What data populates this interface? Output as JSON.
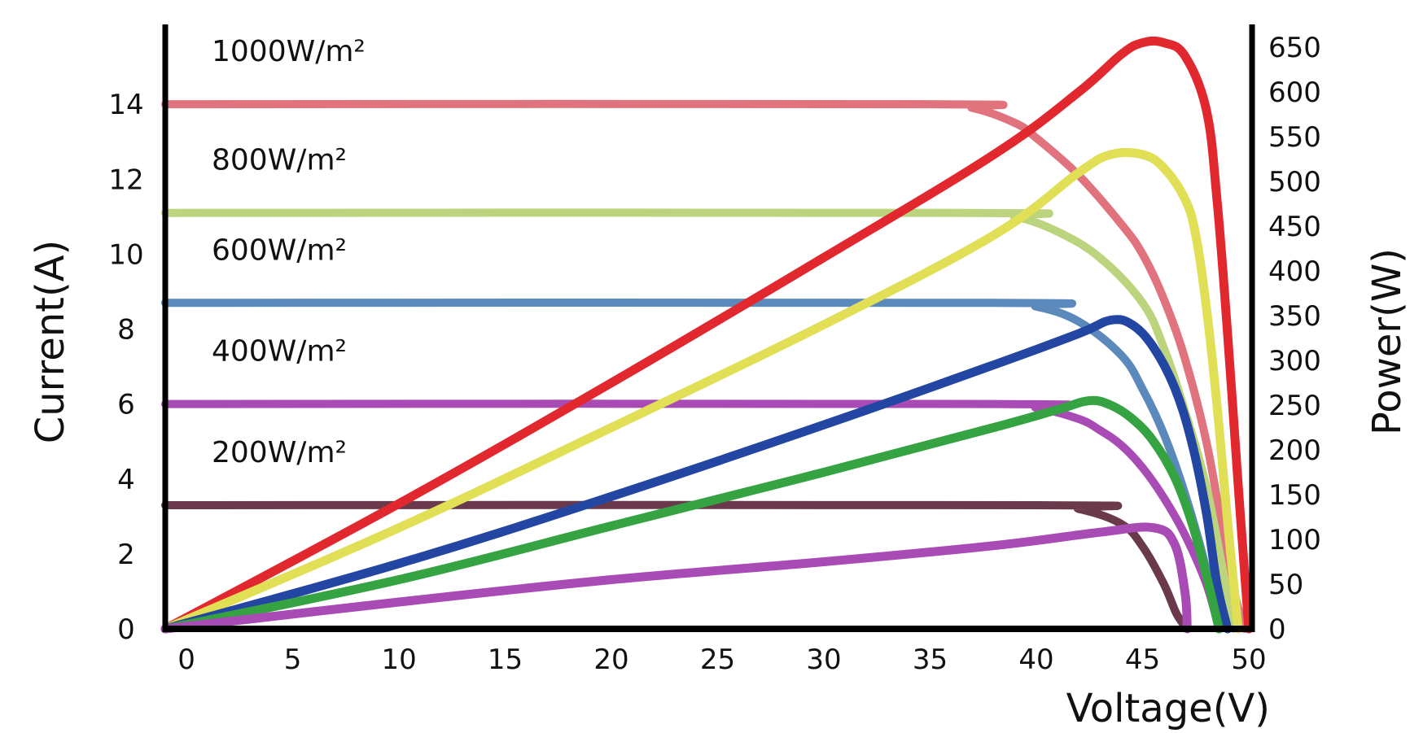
{
  "chart_data": {
    "type": "line",
    "title": "",
    "xlabel": "Voltage(V)",
    "ylabel_left": "Current(A)",
    "ylabel_right": "Power(W)",
    "xlim": [
      -1,
      50
    ],
    "ylim_left": [
      0,
      16
    ],
    "ylim_right": [
      0,
      670
    ],
    "x_ticks": [
      "0",
      "5",
      "10",
      "15",
      "20",
      "25",
      "30",
      "35",
      "40",
      "45",
      "50"
    ],
    "y_left_ticks": [
      "0",
      "2",
      "4",
      "6",
      "8",
      "10",
      "12",
      "14"
    ],
    "y_right_ticks": [
      "0",
      "50",
      "100",
      "150",
      "200",
      "250",
      "300",
      "350",
      "400",
      "450",
      "500",
      "550",
      "600",
      "650"
    ],
    "grid": false,
    "legend": "none",
    "series": [
      {
        "name": "1000W/m²",
        "kind": "current",
        "axis": "left",
        "color": "#e0737d",
        "x": [
          -1,
          35,
          37,
          39,
          40,
          42,
          44,
          45,
          46,
          47,
          48,
          48.8,
          49.3,
          49.8
        ],
        "y": [
          14,
          14,
          13.9,
          13.5,
          13.1,
          12.1,
          10.8,
          10,
          8.8,
          7.2,
          5,
          2.5,
          1,
          0
        ]
      },
      {
        "name": "800W/m²",
        "kind": "current",
        "axis": "left",
        "color": "#bcd47e",
        "x": [
          -1,
          37,
          39,
          41,
          43,
          45,
          46,
          47,
          48,
          48.8,
          49.3
        ],
        "y": [
          11.1,
          11.1,
          11,
          10.6,
          9.9,
          8.7,
          7.5,
          5.8,
          3.8,
          1.5,
          0
        ]
      },
      {
        "name": "600W/m²",
        "kind": "current",
        "axis": "left",
        "color": "#5c89bc",
        "x": [
          -1,
          38,
          40,
          42,
          44,
          45,
          46,
          47,
          48,
          48.6
        ],
        "y": [
          8.7,
          8.7,
          8.6,
          8.2,
          7.3,
          6.4,
          5.2,
          3.6,
          1.6,
          0
        ]
      },
      {
        "name": "400W/m²",
        "kind": "current",
        "axis": "left",
        "color": "#a84bb5",
        "x": [
          -1,
          38,
          40,
          42,
          43,
          44,
          45,
          46,
          47,
          48,
          48.6
        ],
        "y": [
          6,
          6,
          5.9,
          5.6,
          5.3,
          4.9,
          4.3,
          3.5,
          2.5,
          1.2,
          0
        ]
      },
      {
        "name": "200W/m²",
        "kind": "current",
        "axis": "left",
        "color": "#6a3a4c",
        "x": [
          -1,
          40,
          42,
          44,
          45,
          46,
          46.6,
          47.1
        ],
        "y": [
          3.3,
          3.3,
          3.2,
          2.8,
          2.2,
          1.2,
          0.4,
          0
        ]
      },
      {
        "name": "1000W/m² power",
        "kind": "power",
        "axis": "right",
        "color": "#e2282f",
        "x": [
          -1,
          10,
          20,
          30,
          38,
          42,
          44,
          45,
          46,
          47,
          48,
          48.5,
          49,
          49.5,
          50
        ],
        "y": [
          0,
          140,
          275,
          415,
          530,
          600,
          642,
          655,
          655,
          640,
          580,
          480,
          330,
          160,
          0
        ]
      },
      {
        "name": "800W/m² power",
        "kind": "power",
        "axis": "right",
        "color": "#e0df55",
        "x": [
          -1,
          10,
          20,
          30,
          38,
          42,
          43.5,
          45,
          46,
          47,
          47.5,
          48,
          48.5,
          49,
          49.5
        ],
        "y": [
          0,
          113,
          225,
          340,
          440,
          510,
          530,
          530,
          515,
          480,
          440,
          360,
          250,
          120,
          0
        ]
      },
      {
        "name": "600W/m² power",
        "kind": "power",
        "axis": "right",
        "color": "#2446a3",
        "x": [
          -1,
          10,
          20,
          30,
          38,
          42,
          43.5,
          44.5,
          45.5,
          46.5,
          47.3,
          48,
          48.5,
          49
        ],
        "y": [
          0,
          73,
          148,
          228,
          295,
          330,
          345,
          340,
          315,
          270,
          210,
          130,
          50,
          0
        ]
      },
      {
        "name": "400W/m² power",
        "kind": "power",
        "axis": "right",
        "color": "#35a342",
        "x": [
          -1,
          10,
          20,
          30,
          38,
          41,
          42.5,
          43.5,
          44.5,
          45.5,
          46.5,
          47.3,
          48,
          48.6
        ],
        "y": [
          0,
          55,
          115,
          175,
          225,
          245,
          255,
          250,
          235,
          210,
          170,
          120,
          60,
          0
        ]
      },
      {
        "name": "200W/m² power",
        "kind": "power",
        "axis": "right",
        "color": "#a84bb5",
        "x": [
          -1,
          10,
          20,
          30,
          38,
          43,
          45.5,
          46.5,
          47,
          47.1
        ],
        "y": [
          0,
          30,
          55,
          75,
          93,
          108,
          113,
          95,
          40,
          0
        ]
      }
    ],
    "annotations": [
      "1000W/m²",
      "800W/m²",
      "600W/m²",
      "400W/m²",
      "200W/m²"
    ]
  }
}
